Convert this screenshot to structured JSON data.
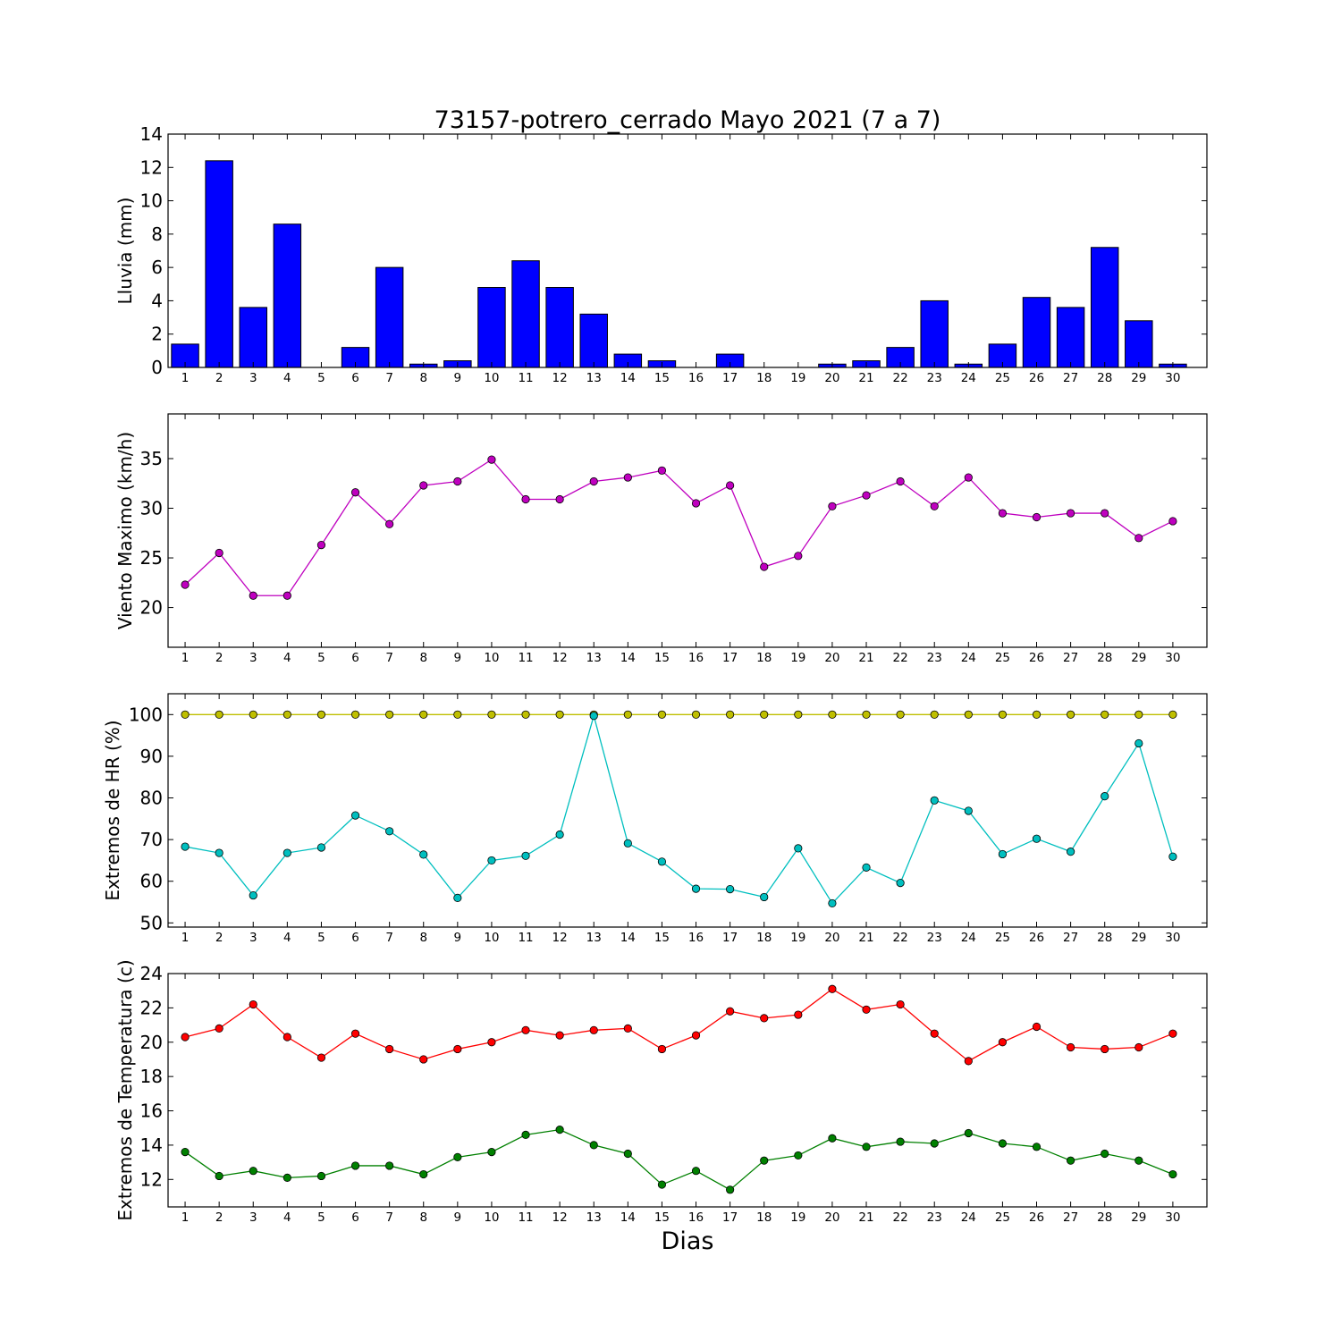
{
  "title": "73157-potrero_cerrado Mayo 2021  (7 a 7)",
  "xlabel": "Dias",
  "days": [
    "1",
    "2",
    "3",
    "4",
    "5",
    "6",
    "7",
    "8",
    "9",
    "10",
    "11",
    "12",
    "13",
    "14",
    "15",
    "16",
    "17",
    "18",
    "19",
    "20",
    "21",
    "22",
    "23",
    "24",
    "25",
    "26",
    "27",
    "28",
    "29",
    "30"
  ],
  "chart_data": [
    {
      "type": "bar",
      "ylabel": "Lluvia (mm)",
      "ylim": [
        0,
        14
      ],
      "yticks": [
        0,
        2,
        4,
        6,
        8,
        10,
        12,
        14
      ],
      "categories": [
        "1",
        "2",
        "3",
        "4",
        "5",
        "6",
        "7",
        "8",
        "9",
        "10",
        "11",
        "12",
        "13",
        "14",
        "15",
        "16",
        "17",
        "18",
        "19",
        "20",
        "21",
        "22",
        "23",
        "24",
        "25",
        "26",
        "27",
        "28",
        "29",
        "30"
      ],
      "series": [
        {
          "color": "#0000ff",
          "values": [
            1.4,
            12.4,
            3.6,
            8.6,
            0,
            1.2,
            6.0,
            0.2,
            0.4,
            4.8,
            6.4,
            4.8,
            3.2,
            0.8,
            0.4,
            0,
            0.8,
            0,
            0,
            0.2,
            0.4,
            1.2,
            4.0,
            0.2,
            1.4,
            4.2,
            3.6,
            7.2,
            2.8,
            0.2
          ]
        }
      ]
    },
    {
      "type": "line",
      "ylabel": "Viento Maximo (km/h)",
      "ylim": [
        16,
        39.5
      ],
      "yticks": [
        20,
        25,
        30,
        35
      ],
      "categories": [
        "1",
        "2",
        "3",
        "4",
        "5",
        "6",
        "7",
        "8",
        "9",
        "10",
        "11",
        "12",
        "13",
        "14",
        "15",
        "16",
        "17",
        "18",
        "19",
        "20",
        "21",
        "22",
        "23",
        "24",
        "25",
        "26",
        "27",
        "28",
        "29",
        "30"
      ],
      "series": [
        {
          "color": "#bf00bf",
          "values": [
            22.3,
            25.5,
            21.2,
            21.2,
            26.3,
            31.6,
            28.4,
            32.3,
            32.7,
            34.9,
            30.9,
            30.9,
            32.7,
            33.1,
            33.8,
            30.5,
            32.3,
            24.1,
            25.2,
            30.2,
            31.3,
            32.7,
            30.2,
            33.1,
            29.5,
            29.1,
            29.5,
            29.5,
            27.0,
            28.7
          ]
        }
      ]
    },
    {
      "type": "line",
      "ylabel": "Extremos de HR (%)",
      "ylim": [
        49,
        105
      ],
      "yticks": [
        50,
        60,
        70,
        80,
        90,
        100
      ],
      "categories": [
        "1",
        "2",
        "3",
        "4",
        "5",
        "6",
        "7",
        "8",
        "9",
        "10",
        "11",
        "12",
        "13",
        "14",
        "15",
        "16",
        "17",
        "18",
        "19",
        "20",
        "21",
        "22",
        "23",
        "24",
        "25",
        "26",
        "27",
        "28",
        "29",
        "30"
      ],
      "series": [
        {
          "color": "#bfbf00",
          "values": [
            100,
            100,
            100,
            100,
            100,
            100,
            100,
            100,
            100,
            100,
            100,
            100,
            100,
            100,
            100,
            100,
            100,
            100,
            100,
            100,
            100,
            100,
            100,
            100,
            100,
            100,
            100,
            100,
            100,
            100
          ]
        },
        {
          "color": "#00bfbf",
          "values": [
            68.3,
            66.8,
            56.6,
            66.8,
            68.1,
            75.8,
            72.0,
            66.4,
            56.0,
            65.0,
            66.1,
            71.2,
            99.7,
            69.1,
            64.7,
            58.2,
            58.1,
            56.2,
            67.9,
            54.7,
            63.3,
            59.6,
            79.4,
            76.9,
            66.5,
            70.2,
            67.1,
            80.4,
            93.1,
            65.9
          ]
        }
      ]
    },
    {
      "type": "line",
      "ylabel": "Extremos de Temperatura (c)",
      "ylim": [
        10.4,
        24
      ],
      "yticks": [
        12,
        14,
        16,
        18,
        20,
        22,
        24
      ],
      "categories": [
        "1",
        "2",
        "3",
        "4",
        "5",
        "6",
        "7",
        "8",
        "9",
        "10",
        "11",
        "12",
        "13",
        "14",
        "15",
        "16",
        "17",
        "18",
        "19",
        "20",
        "21",
        "22",
        "23",
        "24",
        "25",
        "26",
        "27",
        "28",
        "29",
        "30"
      ],
      "series": [
        {
          "color": "#ff0000",
          "values": [
            20.3,
            20.8,
            22.2,
            20.3,
            19.1,
            20.5,
            19.6,
            19.0,
            19.6,
            20.0,
            20.7,
            20.4,
            20.7,
            20.8,
            19.6,
            20.4,
            21.8,
            21.4,
            21.6,
            23.1,
            21.9,
            22.2,
            20.5,
            18.9,
            20.0,
            20.9,
            19.7,
            19.6,
            19.7,
            20.5
          ]
        },
        {
          "color": "#008000",
          "values": [
            13.6,
            12.2,
            12.5,
            12.1,
            12.2,
            12.8,
            12.8,
            12.3,
            13.3,
            13.6,
            14.6,
            14.9,
            14.0,
            13.5,
            11.7,
            12.5,
            11.4,
            13.1,
            13.4,
            14.4,
            13.9,
            14.2,
            14.1,
            14.7,
            14.1,
            13.9,
            13.1,
            13.5,
            13.1,
            12.3
          ]
        }
      ]
    }
  ]
}
